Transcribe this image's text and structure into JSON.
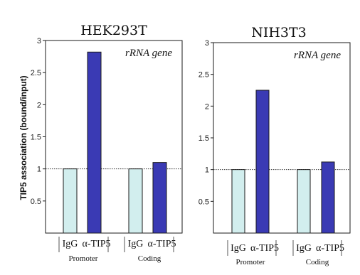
{
  "colors": {
    "igg": "#d2eeee",
    "tip5": "#3a3ab4",
    "stroke": "#1a1a1a"
  },
  "ylabel": "TIP5 association (bound/input)",
  "chart_data": [
    {
      "type": "bar",
      "title": "HEK293T",
      "subtitle": "rRNA gene",
      "ylim": [
        0,
        3
      ],
      "yticks": [
        "3",
        "2.5",
        "2",
        "1.5",
        "1",
        "0.5"
      ],
      "ytick_values": [
        3,
        2.5,
        2,
        1.5,
        1,
        0.5
      ],
      "reference_line": 1,
      "categories": [
        "IgG",
        "α-TIP5",
        "IgG",
        "α-TIP5"
      ],
      "groups": [
        "Promoter",
        "Coding"
      ],
      "values": [
        1.0,
        2.82,
        1.0,
        1.1
      ]
    },
    {
      "type": "bar",
      "title": "NIH3T3",
      "subtitle": "rRNA gene",
      "ylim": [
        0,
        3
      ],
      "yticks": [
        "3",
        "2.5",
        "2",
        "1.5",
        "1",
        "0.5"
      ],
      "ytick_values": [
        3,
        2.5,
        2,
        1.5,
        1,
        0.5
      ],
      "reference_line": 1,
      "categories": [
        "IgG",
        "α-TIP5",
        "IgG",
        "α-TIP5"
      ],
      "groups": [
        "Promoter",
        "Coding"
      ],
      "values": [
        1.0,
        2.25,
        1.0,
        1.12
      ]
    }
  ]
}
